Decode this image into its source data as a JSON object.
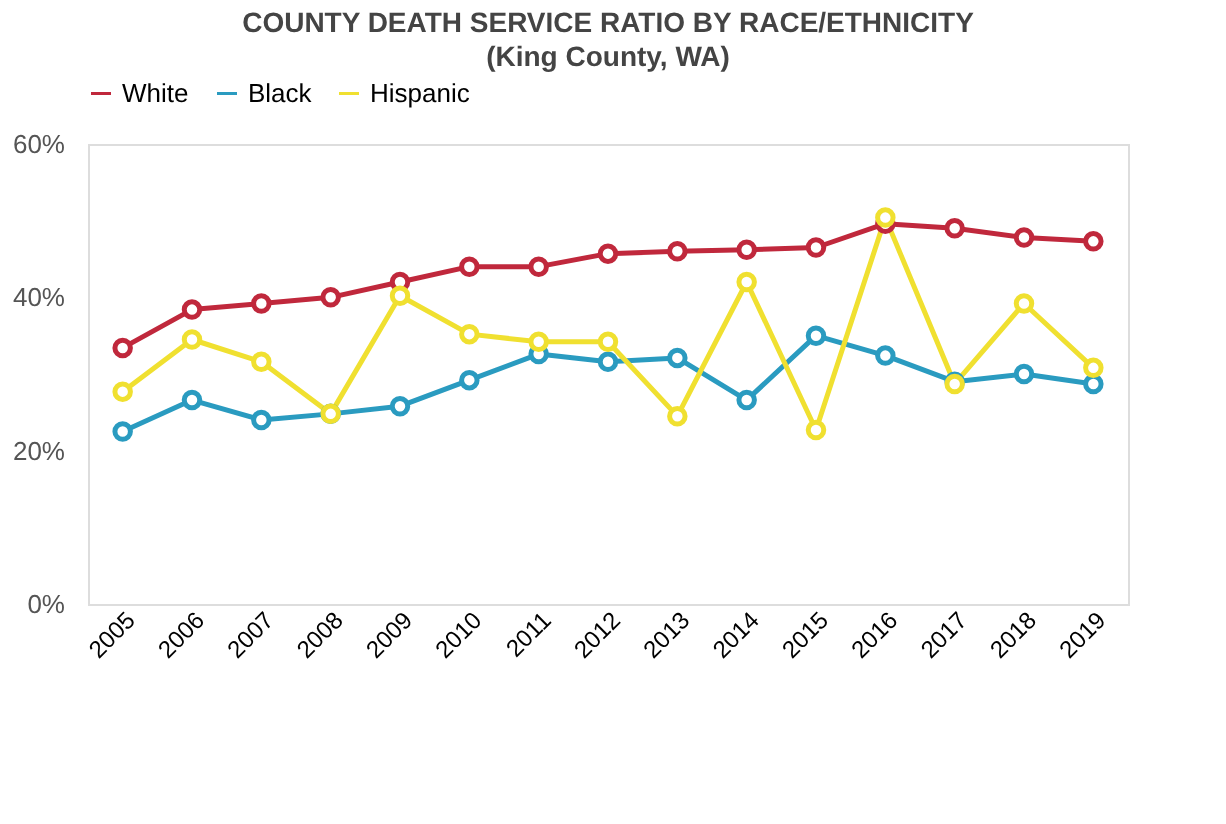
{
  "chart_data": {
    "type": "line",
    "title": "COUNTY DEATH SERVICE RATIO BY RACE/ETHNICITY",
    "subtitle": "(King County, WA)",
    "categories": [
      "2005",
      "2006",
      "2007",
      "2008",
      "2009",
      "2010",
      "2011",
      "2012",
      "2013",
      "2014",
      "2015",
      "2016",
      "2017",
      "2018",
      "2019"
    ],
    "series": [
      {
        "name": "White",
        "color": "#c0283c",
        "values": [
          33.4,
          38.4,
          39.2,
          40,
          42,
          44,
          44,
          45.7,
          46,
          46.2,
          46.5,
          49.6,
          49,
          47.8,
          47.3
        ]
      },
      {
        "name": "Black",
        "color": "#2a9bc0",
        "values": [
          22.5,
          26.6,
          24,
          24.8,
          25.8,
          29.2,
          32.6,
          31.6,
          32.1,
          26.6,
          35,
          32.4,
          29,
          30,
          28.7
        ]
      },
      {
        "name": "Hispanic",
        "color": "#f0e030",
        "values": [
          27.7,
          34.5,
          31.6,
          24.8,
          40.2,
          35.2,
          34.2,
          34.2,
          24.5,
          42,
          22.7,
          50.4,
          28.7,
          39.2,
          30.8
        ]
      }
    ],
    "ylim": [
      0,
      60
    ],
    "yticks": [
      {
        "value": 0,
        "label": "0%"
      },
      {
        "value": 20,
        "label": "20%"
      },
      {
        "value": 40,
        "label": "40%"
      },
      {
        "value": 60,
        "label": "60%"
      }
    ],
    "grid": false,
    "legend": "top",
    "marker": "circle",
    "line_style": "solid"
  }
}
